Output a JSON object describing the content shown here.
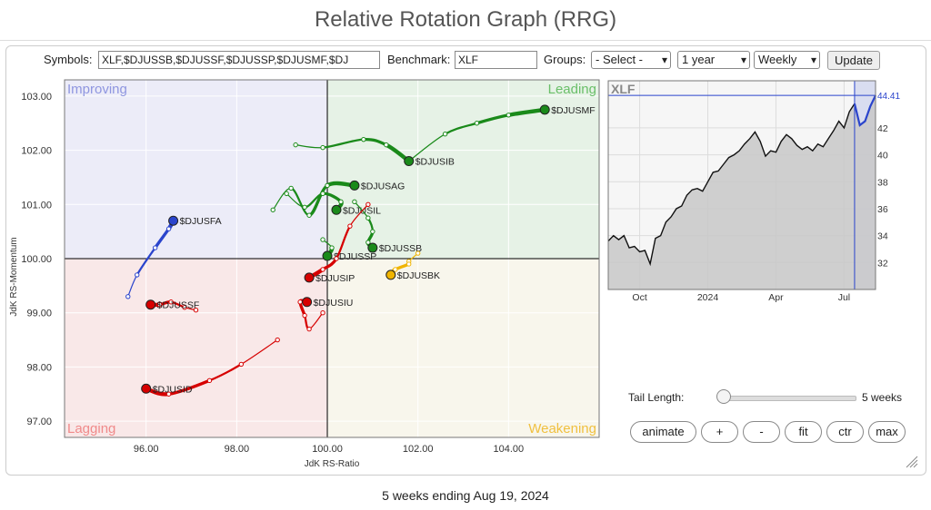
{
  "page": {
    "title": "Relative Rotation Graph (RRG)",
    "footer": "5 weeks ending Aug 19, 2024"
  },
  "controls": {
    "symbols_label": "Symbols:",
    "symbols_value": "XLF,$DJUSSB,$DJUSSF,$DJUSSP,$DJUSMF,$DJ",
    "benchmark_label": "Benchmark:",
    "benchmark_value": "XLF",
    "groups_label": "Groups:",
    "groups_value": "- Select -",
    "period_value": "1 year",
    "frequency_value": "Weekly",
    "update_label": "Update"
  },
  "tail": {
    "label": "Tail Length:",
    "value": "5 weeks",
    "weeks": 5,
    "min": 1,
    "max": 52
  },
  "buttons": [
    "animate",
    "+",
    "-",
    "fit",
    "ctr",
    "max"
  ],
  "icons": [
    "resize-grip-icon"
  ],
  "chart_data": [
    {
      "type": "scatter",
      "xlabel": "JdK RS-Ratio",
      "ylabel": "JdK RS-Momentum",
      "xlim": [
        94.2,
        106.0
      ],
      "ylim": [
        96.7,
        103.3
      ],
      "xticks": [
        "96.00",
        "98.00",
        "100.00",
        "102.00",
        "104.00"
      ],
      "xtick_values": [
        96,
        98,
        100,
        102,
        104
      ],
      "yticks": [
        "97.00",
        "98.00",
        "99.00",
        "100.00",
        "101.00",
        "102.00",
        "103.00"
      ],
      "ytick_values": [
        97,
        98,
        99,
        100,
        101,
        102,
        103
      ],
      "quadrants": {
        "improving": "Improving",
        "leading": "Leading",
        "weakening": "Weakening",
        "lagging": "Lagging"
      },
      "quadrant_colors": {
        "improving": "#ececf8",
        "leading": "#e6f2e6",
        "weakening": "#f8f6ec",
        "lagging": "#f9e8e8"
      },
      "quadrant_label_colors": {
        "improving": "#8f96e0",
        "leading": "#6abf69",
        "weakening": "#f0c040",
        "lagging": "#f08a8a"
      },
      "grid": true,
      "series": [
        {
          "name": "$DJUSMF",
          "color": "#1a8a1a",
          "points": [
            [
              101.8,
              101.8
            ],
            [
              102.6,
              102.3
            ],
            [
              103.3,
              102.5
            ],
            [
              104.0,
              102.65
            ],
            [
              104.8,
              102.75
            ]
          ]
        },
        {
          "name": "$DJUSIB",
          "color": "#1a8a1a",
          "points": [
            [
              99.3,
              102.1
            ],
            [
              99.9,
              102.05
            ],
            [
              100.8,
              102.2
            ],
            [
              101.3,
              102.1
            ],
            [
              101.8,
              101.8
            ]
          ]
        },
        {
          "name": "$DJUSAG",
          "color": "#1a8a1a",
          "points": [
            [
              98.8,
              100.9
            ],
            [
              99.2,
              101.3
            ],
            [
              99.6,
              100.8
            ],
            [
              100.0,
              101.35
            ],
            [
              100.6,
              101.35
            ]
          ]
        },
        {
          "name": "$DJUSIL",
          "color": "#1a8a1a",
          "points": [
            [
              99.1,
              101.2
            ],
            [
              99.5,
              100.95
            ],
            [
              99.9,
              101.2
            ],
            [
              100.3,
              101.05
            ],
            [
              100.2,
              100.9
            ]
          ]
        },
        {
          "name": "$DJUSSB",
          "color": "#1a8a1a",
          "points": [
            [
              100.6,
              101.05
            ],
            [
              100.9,
              100.75
            ],
            [
              101.0,
              100.5
            ],
            [
              100.9,
              100.3
            ],
            [
              101.0,
              100.2
            ]
          ]
        },
        {
          "name": "$DJUSSP",
          "color": "#1a8a1a",
          "points": [
            [
              99.9,
              100.35
            ],
            [
              100.1,
              100.2
            ],
            [
              100.0,
              100.05
            ]
          ]
        },
        {
          "name": "$DJUSBK",
          "color": "#f0b400",
          "points": [
            [
              102.0,
              100.1
            ],
            [
              101.8,
              99.95
            ],
            [
              101.8,
              99.9
            ],
            [
              101.5,
              99.8
            ],
            [
              101.4,
              99.7
            ]
          ]
        },
        {
          "name": "$DJUSFA",
          "color": "#2a44cc",
          "points": [
            [
              95.6,
              99.3
            ],
            [
              95.8,
              99.7
            ],
            [
              96.2,
              100.2
            ],
            [
              96.5,
              100.55
            ],
            [
              96.6,
              100.7
            ]
          ]
        },
        {
          "name": "$DJUSSF",
          "color": "#d60000",
          "points": [
            [
              97.1,
              99.05
            ],
            [
              96.85,
              99.1
            ],
            [
              96.55,
              99.2
            ],
            [
              96.3,
              99.15
            ],
            [
              96.1,
              99.15
            ]
          ]
        },
        {
          "name": "$DJUSIP",
          "color": "#d60000",
          "points": [
            [
              100.9,
              101.0
            ],
            [
              100.5,
              100.6
            ],
            [
              100.2,
              100.0
            ],
            [
              99.9,
              99.8
            ],
            [
              99.6,
              99.65
            ]
          ]
        },
        {
          "name": "$DJUSIU",
          "color": "#d60000",
          "points": [
            [
              99.9,
              99.0
            ],
            [
              99.6,
              98.7
            ],
            [
              99.5,
              98.95
            ],
            [
              99.4,
              99.2
            ],
            [
              99.55,
              99.2
            ]
          ]
        },
        {
          "name": "$DJUSID",
          "color": "#d60000",
          "points": [
            [
              98.9,
              98.5
            ],
            [
              98.1,
              98.05
            ],
            [
              97.4,
              97.75
            ],
            [
              96.5,
              97.5
            ],
            [
              96.0,
              97.6
            ]
          ]
        }
      ]
    },
    {
      "type": "area",
      "title": "XLF",
      "last_value": "44.41",
      "ylim": [
        30.0,
        45.5
      ],
      "yticks": [
        "32",
        "34",
        "36",
        "38",
        "40",
        "42"
      ],
      "ytick_values": [
        32,
        34,
        36,
        38,
        40,
        42
      ],
      "xticks": [
        "Oct",
        "2024",
        "Apr",
        "Jul"
      ],
      "xtick_index": [
        6,
        19,
        32,
        45
      ],
      "highlight_start_index": 47,
      "values": [
        33.6,
        34.0,
        33.7,
        34.0,
        33.1,
        33.2,
        32.8,
        32.9,
        31.9,
        33.8,
        34.0,
        35.0,
        35.4,
        36.0,
        36.2,
        37.0,
        37.4,
        37.5,
        37.3,
        38.0,
        38.7,
        38.8,
        39.3,
        39.8,
        40.0,
        40.3,
        40.8,
        41.2,
        41.7,
        41.0,
        39.9,
        40.3,
        40.2,
        41.0,
        41.5,
        41.2,
        40.7,
        40.4,
        40.6,
        40.3,
        40.8,
        40.6,
        41.2,
        41.8,
        42.5,
        42.0,
        43.2,
        43.8,
        42.2,
        42.5,
        43.6,
        44.41
      ]
    }
  ]
}
